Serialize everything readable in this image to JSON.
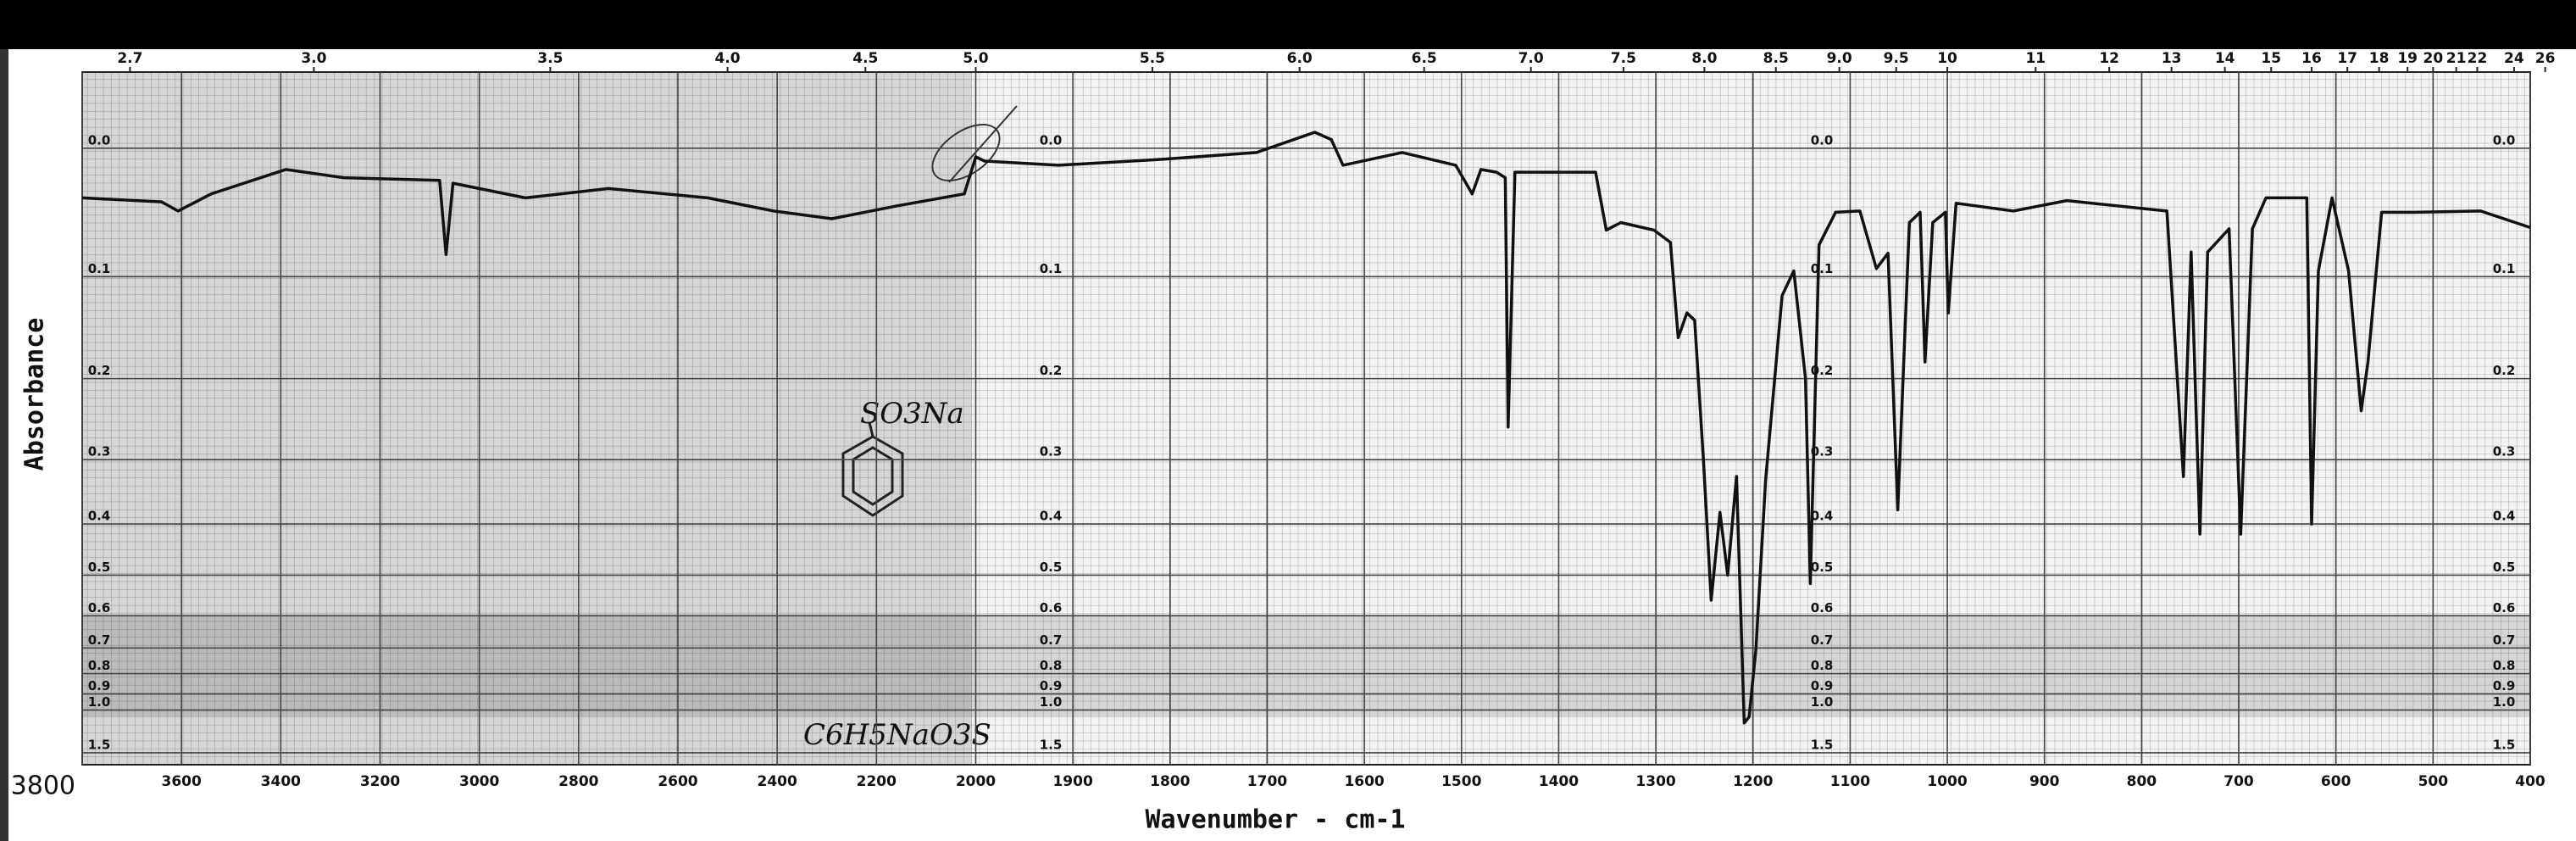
{
  "chart_data": {
    "type": "line",
    "x_label": "Wavenumber - cm-1",
    "y_label": "Absorbance",
    "annotations": [
      "SO3Na",
      "C6H5NaO3S"
    ],
    "color": "#111111",
    "grid": true,
    "y_scale": "transmittance",
    "x_break": 2000,
    "xlim": [
      3800,
      400
    ],
    "xticks": [
      3800,
      3600,
      3400,
      3200,
      3000,
      2800,
      2600,
      2400,
      2200,
      2000,
      1900,
      1800,
      1700,
      1600,
      1500,
      1400,
      1300,
      1200,
      1100,
      1000,
      900,
      800,
      700,
      600,
      500,
      400
    ],
    "x2ticks": [
      2.7,
      {
        "value": 3,
        "label": "3.0"
      },
      3.5,
      {
        "value": 4,
        "label": "4.0"
      },
      4.5,
      {
        "value": 5,
        "label": "5.0"
      },
      5.5,
      {
        "value": 6,
        "label": "6.0"
      },
      6.5,
      {
        "value": 7,
        "label": "7.0"
      },
      7.5,
      {
        "value": 8,
        "label": "8.0"
      },
      8.5,
      {
        "value": 9,
        "label": "9.0"
      },
      9.5,
      10,
      11,
      12,
      13,
      14,
      15,
      16,
      17,
      18,
      19,
      20,
      21,
      22,
      24,
      26
    ],
    "ylim": [
      -0.05,
      1.9
    ],
    "yticks": [
      {
        "value": 0,
        "label": "0.0"
      },
      0.1,
      0.2,
      0.3,
      0.4,
      0.5,
      0.6,
      0.7,
      0.8,
      0.9,
      {
        "value": 1,
        "label": "1.0"
      },
      1.5
    ],
    "x": [
      3800,
      3640,
      3607,
      3540,
      3390,
      3273,
      3080,
      3067,
      3053,
      2907,
      2740,
      2540,
      2407,
      2290,
      2157,
      2023,
      2000,
      1991,
      1915,
      1813,
      1711,
      1651,
      1634,
      1622,
      1561,
      1506,
      1489,
      1480,
      1464,
      1455,
      1452,
      1445,
      1362,
      1351,
      1336,
      1302,
      1285,
      1277,
      1268,
      1260,
      1251,
      1243,
      1234,
      1226,
      1217,
      1209,
      1204,
      1197,
      1187,
      1170,
      1158,
      1146,
      1141,
      1132,
      1115,
      1090,
      1073,
      1061,
      1051,
      1039,
      1028,
      1023,
      1015,
      1002,
      999,
      991,
      932,
      877,
      774,
      757,
      749,
      740,
      732,
      710,
      698,
      686,
      672,
      630,
      625,
      618,
      604,
      587,
      574,
      567,
      553,
      519,
      451,
      400
    ],
    "values": [
      0.036,
      0.039,
      0.046,
      0.033,
      0.015,
      0.021,
      0.023,
      0.081,
      0.025,
      0.036,
      0.029,
      0.036,
      0.046,
      0.052,
      0.042,
      0.033,
      0.006,
      0.009,
      0.012,
      0.008,
      0.003,
      -0.011,
      -0.006,
      0.012,
      0.003,
      0.012,
      0.033,
      0.015,
      0.017,
      0.021,
      0.257,
      0.017,
      0.017,
      0.061,
      0.055,
      0.061,
      0.071,
      0.157,
      0.133,
      0.14,
      0.301,
      0.559,
      0.38,
      0.5,
      0.324,
      1.1,
      1.05,
      0.705,
      0.33,
      0.117,
      0.095,
      0.2,
      0.519,
      0.073,
      0.047,
      0.046,
      0.093,
      0.08,
      0.376,
      0.055,
      0.047,
      0.182,
      0.055,
      0.047,
      0.133,
      0.04,
      0.046,
      0.038,
      0.046,
      0.324,
      0.079,
      0.418,
      0.079,
      0.06,
      0.418,
      0.06,
      0.036,
      0.036,
      0.4,
      0.095,
      0.036,
      0.095,
      0.237,
      0.182,
      0.047,
      0.047,
      0.046,
      0.059
    ]
  }
}
